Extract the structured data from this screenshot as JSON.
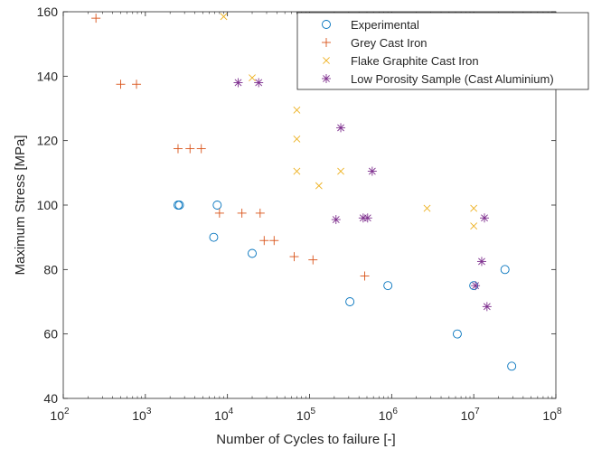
{
  "chart_data": {
    "type": "scatter",
    "xlabel": "Number of Cycles to failure [-]",
    "ylabel": "Maximum Stress [MPa]",
    "x_scale": "log",
    "xlim": [
      100,
      100000000
    ],
    "ylim": [
      40,
      160
    ],
    "x_ticks": [
      {
        "value": 100,
        "base": "10",
        "exp": "2"
      },
      {
        "value": 1000,
        "base": "10",
        "exp": "3"
      },
      {
        "value": 10000,
        "base": "10",
        "exp": "4"
      },
      {
        "value": 100000,
        "base": "10",
        "exp": "5"
      },
      {
        "value": 1000000,
        "base": "10",
        "exp": "6"
      },
      {
        "value": 10000000,
        "base": "10",
        "exp": "7"
      },
      {
        "value": 100000000,
        "base": "10",
        "exp": "8"
      }
    ],
    "y_ticks": [
      {
        "value": 40,
        "label": "40"
      },
      {
        "value": 60,
        "label": "60"
      },
      {
        "value": 80,
        "label": "80"
      },
      {
        "value": 100,
        "label": "100"
      },
      {
        "value": 120,
        "label": "120"
      },
      {
        "value": 140,
        "label": "140"
      },
      {
        "value": 160,
        "label": "160"
      }
    ],
    "grid": false,
    "legend_position": "top-right",
    "series": [
      {
        "name": "Experimental",
        "marker": "circle",
        "color": "#0072BD",
        "points": [
          {
            "x": 2500,
            "y": 100
          },
          {
            "x": 2600,
            "y": 100
          },
          {
            "x": 7500,
            "y": 100
          },
          {
            "x": 6800,
            "y": 90
          },
          {
            "x": 20000,
            "y": 85
          },
          {
            "x": 310000,
            "y": 70
          },
          {
            "x": 900000,
            "y": 75
          },
          {
            "x": 6300000,
            "y": 60
          },
          {
            "x": 10000000,
            "y": 75
          },
          {
            "x": 24000000,
            "y": 80
          },
          {
            "x": 29000000,
            "y": 50
          }
        ]
      },
      {
        "name": "Grey Cast Iron",
        "marker": "plus",
        "color": "#D95319",
        "points": [
          {
            "x": 250,
            "y": 158
          },
          {
            "x": 500,
            "y": 137.5
          },
          {
            "x": 780,
            "y": 137.5
          },
          {
            "x": 2500,
            "y": 117.5
          },
          {
            "x": 3500,
            "y": 117.5
          },
          {
            "x": 4800,
            "y": 117.5
          },
          {
            "x": 8000,
            "y": 97.5
          },
          {
            "x": 15000,
            "y": 97.5
          },
          {
            "x": 25000,
            "y": 97.5
          },
          {
            "x": 28000,
            "y": 89
          },
          {
            "x": 37000,
            "y": 89
          },
          {
            "x": 65000,
            "y": 84
          },
          {
            "x": 110000,
            "y": 83
          },
          {
            "x": 470000,
            "y": 78
          }
        ]
      },
      {
        "name": "Flake Graphite Cast Iron",
        "marker": "x",
        "color": "#EDB120",
        "points": [
          {
            "x": 9000,
            "y": 158.5
          },
          {
            "x": 20000,
            "y": 139.5
          },
          {
            "x": 70000,
            "y": 129.5
          },
          {
            "x": 70000,
            "y": 120.5
          },
          {
            "x": 70000,
            "y": 110.5
          },
          {
            "x": 240000,
            "y": 110.5
          },
          {
            "x": 130000,
            "y": 106
          },
          {
            "x": 2700000,
            "y": 99
          },
          {
            "x": 10000000,
            "y": 99
          },
          {
            "x": 10000000,
            "y": 93.5
          }
        ]
      },
      {
        "name": "Low Porosity Sample (Cast Aluminium)",
        "marker": "asterisk",
        "color": "#7E2F8E",
        "points": [
          {
            "x": 13500,
            "y": 138
          },
          {
            "x": 24000,
            "y": 138
          },
          {
            "x": 240000,
            "y": 124
          },
          {
            "x": 580000,
            "y": 110.5
          },
          {
            "x": 210000,
            "y": 95.5
          },
          {
            "x": 450000,
            "y": 96
          },
          {
            "x": 510000,
            "y": 96
          },
          {
            "x": 13500000,
            "y": 96
          },
          {
            "x": 12500000,
            "y": 82.5
          },
          {
            "x": 10500000,
            "y": 75
          },
          {
            "x": 14500000,
            "y": 68.5
          }
        ]
      }
    ]
  }
}
